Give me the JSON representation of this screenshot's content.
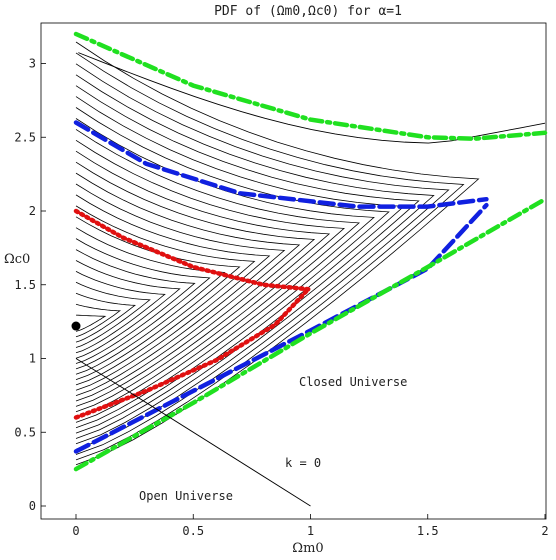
{
  "chart_data": {
    "type": "line",
    "title": "PDF of (Ωm0,Ωc0) for α=1",
    "xlabel": "Ωm0",
    "ylabel": "Ωc0",
    "xlim": [
      0,
      2.0
    ],
    "ylim": [
      0,
      3.25
    ],
    "x_ticks": [
      "0",
      "0.5",
      "1",
      "1.5",
      "2"
    ],
    "y_ticks": [
      "0",
      "0.5",
      "1",
      "1.5",
      "2",
      "2.5",
      "3"
    ],
    "annotations": {
      "closed": "Closed Universe",
      "open": "Open Universe",
      "flat": "k = 0"
    },
    "peak_point": [
      0.0,
      1.22
    ],
    "flat_line": [
      [
        0,
        1
      ],
      [
        1,
        0
      ]
    ],
    "colors": {
      "red_contour": "#e01010",
      "blue_contour": "#1020e0",
      "green_contour": "#20e020",
      "black_contour": "#000000"
    },
    "series": [
      {
        "style": "dotted",
        "color": "red",
        "upper": [
          [
            0,
            2.0
          ],
          [
            0.2,
            1.82
          ],
          [
            0.5,
            1.62
          ],
          [
            0.8,
            1.5
          ],
          [
            0.99,
            1.47
          ]
        ],
        "lower": [
          [
            0,
            0.6
          ],
          [
            0.3,
            0.78
          ],
          [
            0.6,
            0.99
          ],
          [
            0.85,
            1.23
          ],
          [
            0.99,
            1.47
          ]
        ]
      },
      {
        "style": "dashed",
        "color": "blue",
        "upper": [
          [
            0,
            2.6
          ],
          [
            0.3,
            2.32
          ],
          [
            0.7,
            2.12
          ],
          [
            1.2,
            2.03
          ],
          [
            1.5,
            2.03
          ],
          [
            1.75,
            2.08
          ]
        ],
        "lower": [
          [
            0,
            0.37
          ],
          [
            0.5,
            0.78
          ],
          [
            1.0,
            1.19
          ],
          [
            1.5,
            1.61
          ],
          [
            1.75,
            2.04
          ]
        ]
      },
      {
        "style": "dash-dot",
        "color": "green",
        "upper": [
          [
            0,
            3.2
          ],
          [
            0.5,
            2.85
          ],
          [
            1.0,
            2.62
          ],
          [
            1.5,
            2.5
          ],
          [
            1.7,
            2.49
          ],
          [
            2.0,
            2.53
          ]
        ],
        "lower": [
          [
            0,
            0.25
          ],
          [
            0.5,
            0.7
          ],
          [
            1.0,
            1.17
          ],
          [
            1.5,
            1.62
          ],
          [
            2.0,
            2.08
          ]
        ]
      }
    ]
  }
}
